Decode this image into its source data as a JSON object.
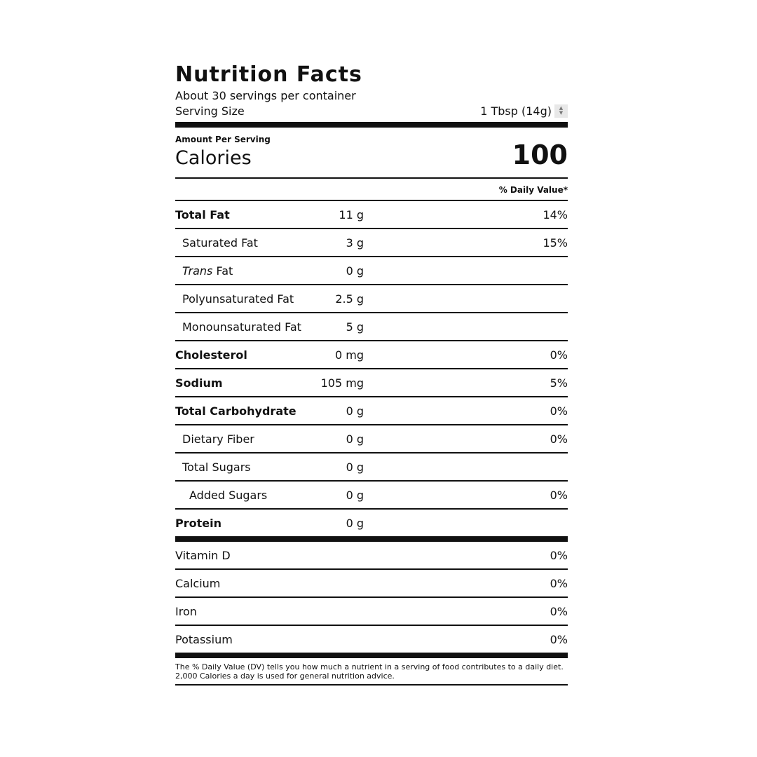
{
  "title": "Nutrition Facts",
  "servings": "About 30 servings per container",
  "serving_size": {
    "label": "Serving Size",
    "value": "1 Tbsp (14g)"
  },
  "amount_per_serving": "Amount Per Serving",
  "calories": {
    "label": "Calories",
    "value": "100"
  },
  "dv_header": "% Daily Value*",
  "nutrients": [
    {
      "name": "Total Fat",
      "amount": "11 g",
      "dv": "14%",
      "bold": true,
      "indent": 0
    },
    {
      "name": "Saturated Fat",
      "amount": "3 g",
      "dv": "15%",
      "bold": false,
      "indent": 1
    },
    {
      "name": "Trans",
      "name_suffix": " Fat",
      "amount": "0 g",
      "dv": "",
      "bold": false,
      "indent": 1,
      "italic_prefix": true
    },
    {
      "name": "Polyunsaturated Fat",
      "amount": "2.5 g",
      "dv": "",
      "bold": false,
      "indent": 1
    },
    {
      "name": "Monounsaturated Fat",
      "amount": "5 g",
      "dv": "",
      "bold": false,
      "indent": 1
    },
    {
      "name": "Cholesterol",
      "amount": "0 mg",
      "dv": "0%",
      "bold": true,
      "indent": 0
    },
    {
      "name": "Sodium",
      "amount": "105 mg",
      "dv": "5%",
      "bold": true,
      "indent": 0
    },
    {
      "name": "Total Carbohydrate",
      "amount": "0 g",
      "dv": "0%",
      "bold": true,
      "indent": 0
    },
    {
      "name": "Dietary Fiber",
      "amount": "0 g",
      "dv": "0%",
      "bold": false,
      "indent": 1
    },
    {
      "name": "Total Sugars",
      "amount": "0 g",
      "dv": "",
      "bold": false,
      "indent": 1
    },
    {
      "name": "Added Sugars",
      "amount": "0 g",
      "dv": "0%",
      "bold": false,
      "indent": 2
    },
    {
      "name": "Protein",
      "amount": "0 g",
      "dv": "",
      "bold": true,
      "indent": 0
    }
  ],
  "vitamins": [
    {
      "name": "Vitamin D",
      "dv": "0%"
    },
    {
      "name": "Calcium",
      "dv": "0%"
    },
    {
      "name": "Iron",
      "dv": "0%"
    },
    {
      "name": "Potassium",
      "dv": "0%"
    }
  ],
  "footnote": [
    "The % Daily Value (DV) tells you how much a nutrient in a serving of food contributes to a daily diet.",
    "2,000 Calories a day is used for general nutrition advice."
  ]
}
